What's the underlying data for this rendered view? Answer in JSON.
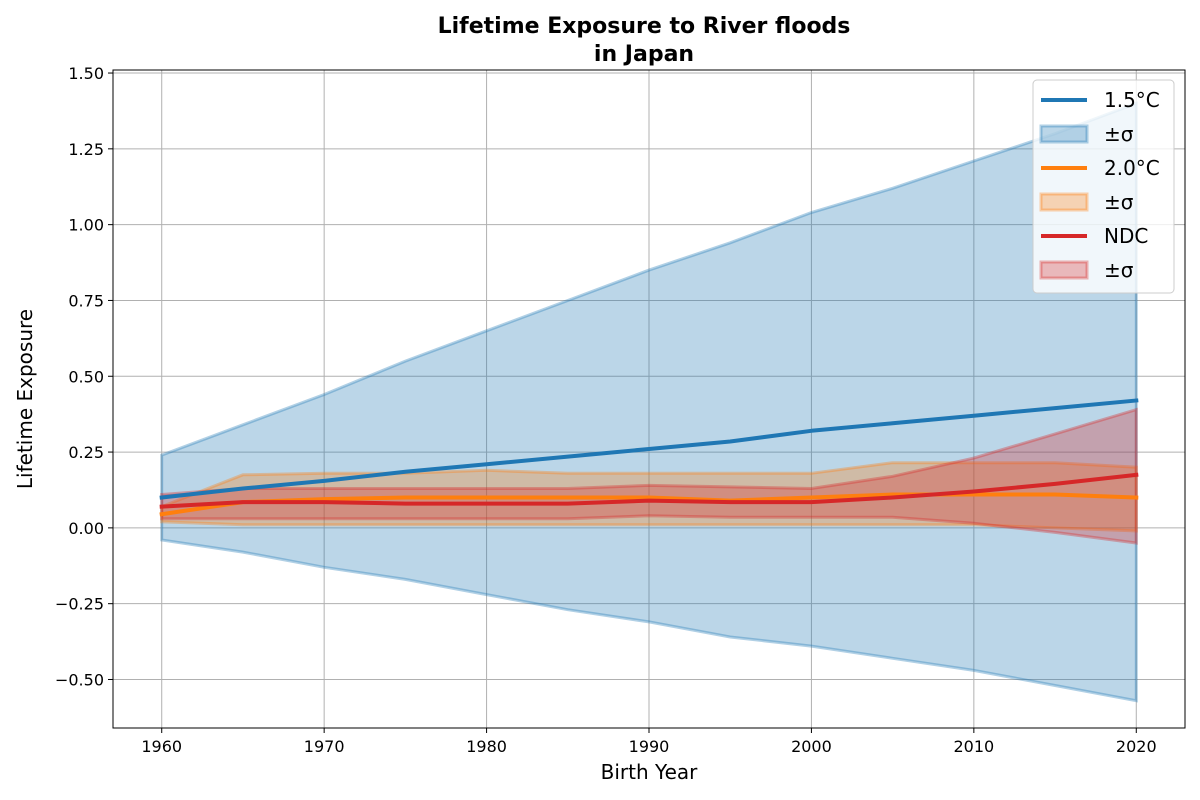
{
  "chart_data": {
    "type": "line",
    "title_line1": "Lifetime Exposure to River floods",
    "title_line2": "in Japan",
    "xlabel": "Birth Year",
    "ylabel": "Lifetime Exposure",
    "xlim": [
      1957,
      2023
    ],
    "ylim": [
      -0.66,
      1.51
    ],
    "xticks": [
      1960,
      1970,
      1980,
      1990,
      2000,
      2010,
      2020
    ],
    "yticks": [
      -0.5,
      -0.25,
      0.0,
      0.25,
      0.5,
      0.75,
      1.0,
      1.25,
      1.5
    ],
    "ytick_labels": [
      "−0.50",
      "−0.25",
      "0.00",
      "0.25",
      "0.50",
      "0.75",
      "1.00",
      "1.25",
      "1.50"
    ],
    "grid": true,
    "legend_position": "top-right",
    "x": [
      1960,
      1965,
      1970,
      1975,
      1980,
      1985,
      1990,
      1995,
      2000,
      2005,
      2010,
      2015,
      2020
    ],
    "series": [
      {
        "name": "1.5°C",
        "band_label": "±σ",
        "color": "#1f77b4",
        "mean": [
          0.1,
          0.13,
          0.155,
          0.185,
          0.21,
          0.235,
          0.26,
          0.285,
          0.32,
          0.345,
          0.37,
          0.395,
          0.42
        ],
        "upper": [
          0.24,
          0.34,
          0.44,
          0.55,
          0.65,
          0.75,
          0.85,
          0.94,
          1.04,
          1.12,
          1.21,
          1.3,
          1.4
        ],
        "lower": [
          -0.04,
          -0.08,
          -0.13,
          -0.17,
          -0.22,
          -0.27,
          -0.31,
          -0.36,
          -0.39,
          -0.43,
          -0.47,
          -0.52,
          -0.57
        ]
      },
      {
        "name": "2.0°C",
        "band_label": "±σ",
        "color": "#ff7f0e",
        "mean": [
          0.045,
          0.085,
          0.095,
          0.1,
          0.1,
          0.1,
          0.1,
          0.09,
          0.1,
          0.11,
          0.11,
          0.11,
          0.1
        ],
        "upper": [
          0.07,
          0.175,
          0.18,
          0.18,
          0.19,
          0.18,
          0.18,
          0.18,
          0.18,
          0.215,
          0.215,
          0.215,
          0.2
        ],
        "lower": [
          0.02,
          0.01,
          0.01,
          0.01,
          0.01,
          0.01,
          0.01,
          0.01,
          0.01,
          0.01,
          0.01,
          0.0,
          -0.01
        ]
      },
      {
        "name": "NDC",
        "band_label": "±σ",
        "color": "#d62728",
        "mean": [
          0.07,
          0.085,
          0.085,
          0.08,
          0.08,
          0.08,
          0.09,
          0.085,
          0.085,
          0.1,
          0.12,
          0.145,
          0.175
        ],
        "upper": [
          0.11,
          0.13,
          0.13,
          0.13,
          0.13,
          0.13,
          0.14,
          0.135,
          0.13,
          0.17,
          0.23,
          0.31,
          0.39
        ],
        "lower": [
          0.03,
          0.03,
          0.03,
          0.03,
          0.03,
          0.03,
          0.04,
          0.035,
          0.035,
          0.035,
          0.015,
          -0.015,
          -0.05
        ]
      }
    ]
  }
}
